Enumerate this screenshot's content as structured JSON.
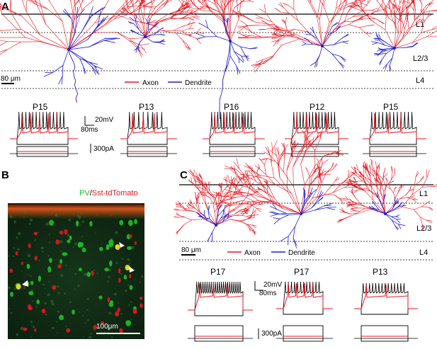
{
  "panels": [
    {
      "letter": "A",
      "layers": [
        "L1",
        "L2/3",
        "L4"
      ],
      "scale_bar": "80 μm",
      "legend": {
        "axon": "Axon",
        "dendrite": "Dendrite"
      },
      "ages": [
        "P15",
        "P13",
        "P16",
        "P12",
        "P15"
      ],
      "voltage_scale": "20mV",
      "time_scale": "80ms",
      "current_scale": "300pA"
    },
    {
      "letter": "B",
      "label_green": "PV",
      "label_sep": "/",
      "label_red": "Sst-tdTomato",
      "scale_bar": "100μm"
    },
    {
      "letter": "C",
      "layers": [
        "L1",
        "L2/3",
        "L4"
      ],
      "scale_bar": "80 μm",
      "legend": {
        "axon": "Axon",
        "dendrite": "Dendrite"
      },
      "ages": [
        "P17",
        "P17",
        "P13"
      ],
      "voltage_scale": "20mV",
      "time_scale": "80ms",
      "current_scale": "300pA"
    }
  ],
  "colors": {
    "axon": "#e8141e",
    "dendrite": "#1f1fd6",
    "pv": "#1fbf2a",
    "tomato": "#e8141e"
  }
}
